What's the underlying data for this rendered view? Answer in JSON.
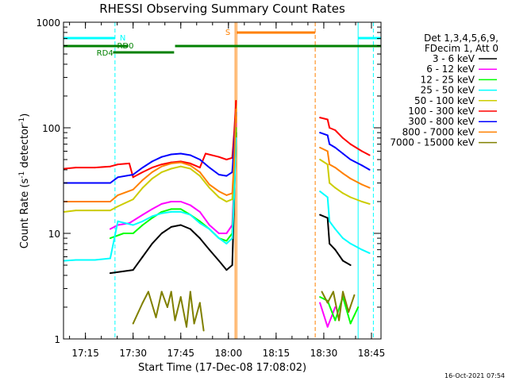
{
  "chart_data": {
    "type": "line",
    "title": "RHESSI Observing Summary Count Rates",
    "ylabel_main": "Count Rate (s",
    "ylabel_sup1": "-1",
    "ylabel_mid": " detector",
    "ylabel_sup2": "-1",
    "ylabel_end": ")",
    "xlabel": "Start Time (17-Dec-08 17:08:02)",
    "footer": "16-Oct-2021 07:54",
    "y_scale": "log",
    "ylim": [
      1,
      1000
    ],
    "xlim": [
      17.135,
      18.8
    ],
    "x_tick_labels": [
      "17:15",
      "17:30",
      "17:45",
      "18:00",
      "18:15",
      "18:30",
      "18:45"
    ],
    "x_tick_values": [
      17.25,
      17.5,
      17.75,
      18.0,
      18.25,
      18.5,
      18.75
    ],
    "y_tick_labels": [
      "1",
      "10",
      "100",
      "1000"
    ],
    "y_tick_values": [
      1,
      10,
      100,
      1000
    ],
    "legend_placement": "top-right",
    "legend_header": [
      "Det 1,3,4,5,6,9,",
      "FDecim 1, Att 0"
    ],
    "flag_labels": {
      "night": "N",
      "saa": "S",
      "rd0": "RD0",
      "rd4": "RD4"
    },
    "flags": {
      "night": [
        [
          17.135,
          17.405
        ],
        [
          18.68,
          18.8
        ]
      ],
      "saa": [
        [
          18.042,
          18.455
        ]
      ],
      "rd0": [
        [
          17.395,
          17.715
        ]
      ],
      "rd4": [
        [
          17.135,
          17.475
        ],
        [
          17.72,
          18.8
        ]
      ]
    },
    "verticals": {
      "cyan_solid": [
        17.135,
        18.68
      ],
      "cyan_dashed": [
        17.405,
        18.76
      ],
      "orange_solid": [
        18.035
      ],
      "orange_dashed": [
        18.455
      ]
    },
    "series": [
      {
        "name": "3 - 6 keV",
        "color": "#000000",
        "segments": [
          [
            [
              17.38,
              4.2
            ],
            [
              17.5,
              4.5
            ],
            [
              17.55,
              6
            ],
            [
              17.6,
              8
            ],
            [
              17.65,
              10
            ],
            [
              17.7,
              11.5
            ],
            [
              17.75,
              12
            ],
            [
              17.8,
              11
            ],
            [
              17.85,
              9
            ],
            [
              17.9,
              7
            ],
            [
              17.95,
              5.5
            ],
            [
              17.99,
              4.5
            ],
            [
              18.02,
              5
            ],
            [
              18.03,
              20
            ],
            [
              18.04,
              90
            ]
          ],
          [
            [
              18.48,
              15
            ],
            [
              18.52,
              14
            ],
            [
              18.53,
              8
            ],
            [
              18.56,
              7
            ],
            [
              18.6,
              5.5
            ],
            [
              18.64,
              5
            ]
          ]
        ]
      },
      {
        "name": "6 - 12 keV",
        "color": "#ff00ff",
        "segments": [
          [
            [
              17.38,
              11
            ],
            [
              17.42,
              12
            ],
            [
              17.48,
              12.5
            ],
            [
              17.55,
              15
            ],
            [
              17.6,
              17
            ],
            [
              17.65,
              19
            ],
            [
              17.7,
              20
            ],
            [
              17.75,
              20
            ],
            [
              17.8,
              18.5
            ],
            [
              17.85,
              16
            ],
            [
              17.9,
              12
            ],
            [
              17.95,
              10
            ],
            [
              17.99,
              10
            ],
            [
              18.02,
              12
            ],
            [
              18.03,
              30
            ],
            [
              18.04,
              110
            ]
          ],
          [
            [
              18.48,
              2.2
            ],
            [
              18.52,
              1.3
            ],
            [
              18.56,
              2
            ]
          ]
        ]
      },
      {
        "name": "12 - 25 keV",
        "color": "#00ff00",
        "segments": [
          [
            [
              17.38,
              9
            ],
            [
              17.45,
              10
            ],
            [
              17.5,
              10
            ],
            [
              17.55,
              12
            ],
            [
              17.6,
              14
            ],
            [
              17.65,
              16
            ],
            [
              17.7,
              17
            ],
            [
              17.75,
              17
            ],
            [
              17.8,
              15
            ],
            [
              17.85,
              13
            ],
            [
              17.9,
              11
            ],
            [
              17.95,
              9
            ],
            [
              17.99,
              8.5
            ],
            [
              18.02,
              10
            ],
            [
              18.03,
              25
            ],
            [
              18.04,
              100
            ]
          ],
          [
            [
              18.48,
              2.5
            ],
            [
              18.52,
              2.3
            ],
            [
              18.56,
              1.5
            ],
            [
              18.6,
              2.5
            ],
            [
              18.64,
              1.4
            ],
            [
              18.68,
              2
            ]
          ]
        ]
      },
      {
        "name": "25 - 50 keV",
        "color": "#00ffff",
        "segments": [
          [
            [
              17.14,
              5.5
            ],
            [
              17.2,
              5.6
            ],
            [
              17.3,
              5.6
            ],
            [
              17.38,
              5.8
            ],
            [
              17.42,
              13
            ],
            [
              17.5,
              12
            ],
            [
              17.55,
              13
            ],
            [
              17.6,
              14.5
            ],
            [
              17.65,
              15.5
            ],
            [
              17.7,
              16
            ],
            [
              17.75,
              16
            ],
            [
              17.8,
              15
            ],
            [
              17.85,
              12.5
            ],
            [
              17.9,
              11
            ],
            [
              17.95,
              9
            ],
            [
              17.99,
              8
            ],
            [
              18.02,
              9
            ],
            [
              18.03,
              22
            ],
            [
              18.04,
              80
            ]
          ],
          [
            [
              18.48,
              25
            ],
            [
              18.52,
              22
            ],
            [
              18.53,
              13
            ],
            [
              18.56,
              11
            ],
            [
              18.6,
              9
            ],
            [
              18.64,
              8
            ],
            [
              18.7,
              7
            ],
            [
              18.74,
              6.5
            ]
          ]
        ]
      },
      {
        "name": "50 - 100 keV",
        "color": "#cccc00",
        "segments": [
          [
            [
              17.14,
              16
            ],
            [
              17.2,
              16.5
            ],
            [
              17.3,
              16.5
            ],
            [
              17.38,
              16.5
            ],
            [
              17.42,
              18
            ],
            [
              17.5,
              21
            ],
            [
              17.55,
              27
            ],
            [
              17.6,
              33
            ],
            [
              17.65,
              38
            ],
            [
              17.7,
              41
            ],
            [
              17.75,
              43
            ],
            [
              17.8,
              41
            ],
            [
              17.85,
              35
            ],
            [
              17.9,
              27
            ],
            [
              17.95,
              22
            ],
            [
              17.99,
              20
            ],
            [
              18.02,
              21
            ],
            [
              18.03,
              45
            ],
            [
              18.04,
              160
            ]
          ],
          [
            [
              18.48,
              50
            ],
            [
              18.52,
              45
            ],
            [
              18.53,
              30
            ],
            [
              18.56,
              27
            ],
            [
              18.6,
              24
            ],
            [
              18.64,
              22
            ],
            [
              18.7,
              20
            ],
            [
              18.74,
              19
            ]
          ]
        ]
      },
      {
        "name": "100 - 300 keV",
        "color": "#ff0000",
        "segments": [
          [
            [
              17.14,
              41
            ],
            [
              17.2,
              42
            ],
            [
              17.3,
              42
            ],
            [
              17.38,
              43
            ],
            [
              17.42,
              45
            ],
            [
              17.48,
              46
            ],
            [
              17.5,
              34
            ],
            [
              17.55,
              38
            ],
            [
              17.6,
              42
            ],
            [
              17.65,
              45
            ],
            [
              17.7,
              47
            ],
            [
              17.75,
              48
            ],
            [
              17.8,
              46
            ],
            [
              17.85,
              42
            ],
            [
              17.88,
              57
            ],
            [
              17.95,
              53
            ],
            [
              17.99,
              50
            ],
            [
              18.02,
              52
            ],
            [
              18.03,
              90
            ],
            [
              18.04,
              180
            ]
          ],
          [
            [
              18.48,
              125
            ],
            [
              18.52,
              120
            ],
            [
              18.53,
              100
            ],
            [
              18.56,
              95
            ],
            [
              18.6,
              80
            ],
            [
              18.64,
              70
            ],
            [
              18.7,
              60
            ],
            [
              18.74,
              55
            ]
          ]
        ]
      },
      {
        "name": "300 - 800 keV",
        "color": "#0000ff",
        "segments": [
          [
            [
              17.14,
              30
            ],
            [
              17.2,
              30
            ],
            [
              17.3,
              30
            ],
            [
              17.38,
              30
            ],
            [
              17.42,
              34
            ],
            [
              17.5,
              36
            ],
            [
              17.55,
              42
            ],
            [
              17.6,
              48
            ],
            [
              17.65,
              53
            ],
            [
              17.7,
              56
            ],
            [
              17.75,
              57
            ],
            [
              17.8,
              55
            ],
            [
              17.85,
              50
            ],
            [
              17.9,
              42
            ],
            [
              17.95,
              36
            ],
            [
              17.99,
              35
            ],
            [
              18.02,
              38
            ],
            [
              18.03,
              70
            ],
            [
              18.04,
              140
            ]
          ],
          [
            [
              18.48,
              90
            ],
            [
              18.52,
              85
            ],
            [
              18.53,
              70
            ],
            [
              18.56,
              65
            ],
            [
              18.6,
              57
            ],
            [
              18.64,
              50
            ],
            [
              18.7,
              44
            ],
            [
              18.74,
              40
            ]
          ]
        ]
      },
      {
        "name": "800 - 7000 keV",
        "color": "#ff8000",
        "segments": [
          [
            [
              17.14,
              20
            ],
            [
              17.2,
              20
            ],
            [
              17.3,
              20
            ],
            [
              17.38,
              20
            ],
            [
              17.42,
              23
            ],
            [
              17.5,
              26
            ],
            [
              17.55,
              32
            ],
            [
              17.6,
              38
            ],
            [
              17.65,
              43
            ],
            [
              17.7,
              46
            ],
            [
              17.75,
              47
            ],
            [
              17.8,
              44
            ],
            [
              17.85,
              38
            ],
            [
              17.9,
              29
            ],
            [
              17.95,
              25
            ],
            [
              17.99,
              23
            ],
            [
              18.02,
              24
            ],
            [
              18.03,
              50
            ],
            [
              18.04,
              150
            ]
          ],
          [
            [
              18.48,
              65
            ],
            [
              18.52,
              60
            ],
            [
              18.53,
              45
            ],
            [
              18.56,
              42
            ],
            [
              18.6,
              37
            ],
            [
              18.64,
              33
            ],
            [
              18.7,
              29
            ],
            [
              18.74,
              27
            ]
          ]
        ]
      },
      {
        "name": "7000 - 15000 keV",
        "color": "#808000",
        "segments": [
          [
            [
              17.5,
              1.4
            ],
            [
              17.55,
              2.2
            ],
            [
              17.58,
              2.8
            ],
            [
              17.62,
              1.6
            ],
            [
              17.65,
              2.8
            ],
            [
              17.68,
              2
            ],
            [
              17.7,
              2.8
            ],
            [
              17.72,
              1.5
            ],
            [
              17.75,
              2.5
            ],
            [
              17.78,
              1.3
            ],
            [
              17.8,
              2.8
            ],
            [
              17.82,
              1.4
            ],
            [
              17.85,
              2.2
            ],
            [
              17.87,
              1.2
            ]
          ],
          [
            [
              18.49,
              2.8
            ],
            [
              18.52,
              2.2
            ],
            [
              18.55,
              2.8
            ],
            [
              18.58,
              1.5
            ],
            [
              18.6,
              2.8
            ],
            [
              18.63,
              1.8
            ],
            [
              18.66,
              2.6
            ]
          ]
        ]
      }
    ]
  }
}
